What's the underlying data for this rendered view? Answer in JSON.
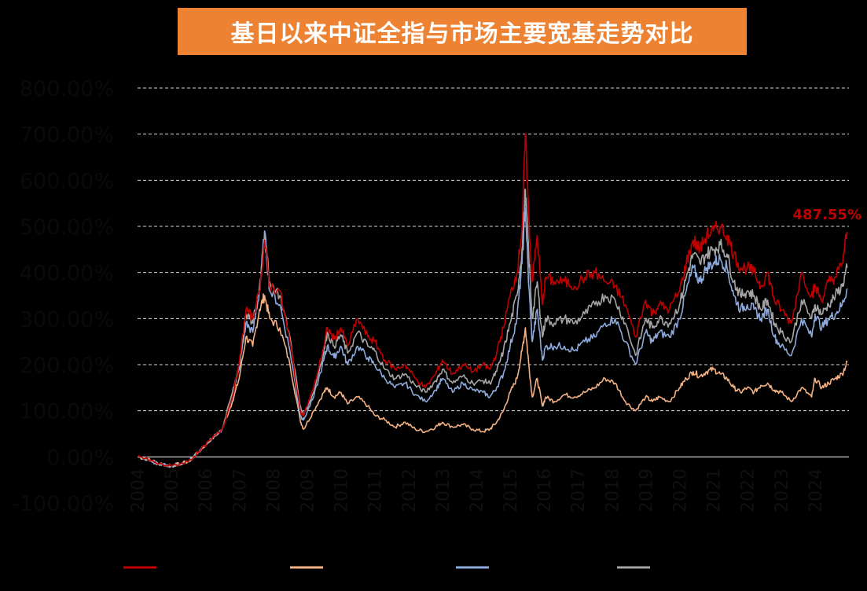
{
  "title": "基日以来中证全指与市场主要宽基走势对比",
  "colors": {
    "background": "#000000",
    "title_bg": "#ee8233",
    "title_text": "#ffffff",
    "grid": "#d9d9d9"
  },
  "chart_data": {
    "type": "line",
    "title": "基日以来中证全指与市场主要宽基走势对比",
    "ylim": [
      -100,
      800
    ],
    "xlim": [
      2004.0,
      2025.0
    ],
    "y_ticks": [
      "-100.00%",
      "0.00%",
      "100.00%",
      "200.00%",
      "300.00%",
      "400.00%",
      "500.00%",
      "600.00%",
      "700.00%",
      "800.00%"
    ],
    "y_tick_values": [
      -100,
      0,
      100,
      200,
      300,
      400,
      500,
      600,
      700,
      800
    ],
    "x_ticks": [
      "2004",
      "2005",
      "2006",
      "2007",
      "2008",
      "2009",
      "2010",
      "2011",
      "2012",
      "2013",
      "2014",
      "2015",
      "2016",
      "2017",
      "2018",
      "2019",
      "2020",
      "2021",
      "2022",
      "2023",
      "2024"
    ],
    "grid": "horizontal-dashed",
    "legend": "bottom",
    "end_annotation": "487.55%",
    "series": [
      {
        "color": "#c00000",
        "x": [
          2004.0,
          2004.3,
          2004.6,
          2005.0,
          2005.5,
          2005.8,
          2006.2,
          2006.5,
          2006.8,
          2007.0,
          2007.2,
          2007.4,
          2007.6,
          2007.75,
          2007.9,
          2008.2,
          2008.5,
          2008.8,
          2008.9,
          2009.2,
          2009.5,
          2009.6,
          2009.8,
          2010.0,
          2010.2,
          2010.5,
          2010.8,
          2011.0,
          2011.3,
          2011.6,
          2011.9,
          2012.2,
          2012.5,
          2012.8,
          2013.0,
          2013.3,
          2013.6,
          2013.9,
          2014.2,
          2014.4,
          2014.6,
          2014.8,
          2015.0,
          2015.2,
          2015.35,
          2015.45,
          2015.55,
          2015.65,
          2015.8,
          2015.95,
          2016.05,
          2016.3,
          2016.6,
          2016.9,
          2017.2,
          2017.5,
          2017.8,
          2018.1,
          2018.4,
          2018.7,
          2019.0,
          2019.2,
          2019.4,
          2019.7,
          2020.0,
          2020.2,
          2020.4,
          2020.6,
          2020.8,
          2021.0,
          2021.2,
          2021.4,
          2021.6,
          2021.8,
          2022.0,
          2022.2,
          2022.4,
          2022.6,
          2022.8,
          2023.0,
          2023.3,
          2023.6,
          2023.9,
          2024.0,
          2024.2,
          2024.4,
          2024.6,
          2024.8,
          2024.95
        ],
        "y": [
          0,
          -5,
          -15,
          -20,
          -10,
          10,
          40,
          60,
          130,
          200,
          320,
          300,
          360,
          470,
          370,
          360,
          250,
          100,
          90,
          150,
          240,
          280,
          255,
          280,
          240,
          300,
          260,
          250,
          210,
          190,
          200,
          170,
          150,
          180,
          210,
          180,
          200,
          185,
          200,
          190,
          225,
          280,
          350,
          400,
          495,
          700,
          520,
          380,
          480,
          330,
          390,
          380,
          380,
          370,
          390,
          400,
          380,
          370,
          330,
          260,
          340,
          310,
          330,
          320,
          360,
          420,
          470,
          450,
          480,
          490,
          500,
          480,
          440,
          410,
          410,
          400,
          370,
          400,
          340,
          320,
          290,
          400,
          350,
          370,
          340,
          380,
          390,
          420,
          488
        ]
      },
      {
        "color": "#f4b183",
        "x": [
          2004.0,
          2004.3,
          2004.6,
          2005.0,
          2005.5,
          2005.8,
          2006.2,
          2006.5,
          2006.8,
          2007.0,
          2007.2,
          2007.4,
          2007.6,
          2007.75,
          2007.9,
          2008.2,
          2008.5,
          2008.8,
          2008.9,
          2009.2,
          2009.5,
          2009.6,
          2009.8,
          2010.0,
          2010.2,
          2010.5,
          2010.8,
          2011.0,
          2011.3,
          2011.6,
          2011.9,
          2012.2,
          2012.5,
          2012.8,
          2013.0,
          2013.3,
          2013.6,
          2013.9,
          2014.2,
          2014.4,
          2014.6,
          2014.8,
          2015.0,
          2015.2,
          2015.35,
          2015.45,
          2015.55,
          2015.65,
          2015.8,
          2015.95,
          2016.05,
          2016.3,
          2016.6,
          2016.9,
          2017.2,
          2017.5,
          2017.8,
          2018.1,
          2018.4,
          2018.7,
          2019.0,
          2019.2,
          2019.4,
          2019.7,
          2020.0,
          2020.2,
          2020.4,
          2020.6,
          2020.8,
          2021.0,
          2021.2,
          2021.4,
          2021.6,
          2021.8,
          2022.0,
          2022.2,
          2022.4,
          2022.6,
          2022.8,
          2023.0,
          2023.3,
          2023.6,
          2023.9,
          2024.0,
          2024.2,
          2024.4,
          2024.6,
          2024.8,
          2024.95
        ],
        "y": [
          0,
          -5,
          -15,
          -20,
          -10,
          10,
          40,
          60,
          120,
          170,
          260,
          240,
          320,
          350,
          300,
          280,
          200,
          80,
          60,
          100,
          140,
          150,
          130,
          140,
          115,
          130,
          110,
          90,
          80,
          65,
          75,
          60,
          55,
          65,
          75,
          65,
          70,
          60,
          55,
          60,
          75,
          100,
          140,
          170,
          230,
          280,
          200,
          130,
          170,
          110,
          130,
          120,
          135,
          130,
          140,
          150,
          170,
          160,
          120,
          100,
          130,
          120,
          130,
          120,
          150,
          170,
          185,
          175,
          185,
          190,
          180,
          170,
          150,
          140,
          150,
          140,
          155,
          160,
          145,
          140,
          120,
          150,
          130,
          170,
          150,
          160,
          170,
          180,
          205
        ]
      },
      {
        "color": "#8eaadb",
        "x": [
          2004.0,
          2004.3,
          2004.6,
          2005.0,
          2005.5,
          2005.8,
          2006.2,
          2006.5,
          2006.8,
          2007.0,
          2007.2,
          2007.4,
          2007.6,
          2007.75,
          2007.9,
          2008.2,
          2008.5,
          2008.8,
          2008.9,
          2009.2,
          2009.5,
          2009.6,
          2009.8,
          2010.0,
          2010.2,
          2010.5,
          2010.8,
          2011.0,
          2011.3,
          2011.6,
          2011.9,
          2012.2,
          2012.5,
          2012.8,
          2013.0,
          2013.3,
          2013.6,
          2013.9,
          2014.2,
          2014.4,
          2014.6,
          2014.8,
          2015.0,
          2015.2,
          2015.35,
          2015.45,
          2015.55,
          2015.65,
          2015.8,
          2015.95,
          2016.05,
          2016.3,
          2016.6,
          2016.9,
          2017.2,
          2017.5,
          2017.8,
          2018.1,
          2018.4,
          2018.7,
          2019.0,
          2019.2,
          2019.4,
          2019.7,
          2020.0,
          2020.2,
          2020.4,
          2020.6,
          2020.8,
          2021.0,
          2021.2,
          2021.4,
          2021.6,
          2021.8,
          2022.0,
          2022.2,
          2022.4,
          2022.6,
          2022.8,
          2023.0,
          2023.3,
          2023.6,
          2023.9,
          2024.0,
          2024.2,
          2024.4,
          2024.6,
          2024.8,
          2024.95
        ],
        "y": [
          0,
          -5,
          -15,
          -20,
          -10,
          10,
          40,
          60,
          130,
          190,
          290,
          270,
          360,
          490,
          360,
          330,
          230,
          90,
          80,
          130,
          210,
          240,
          215,
          240,
          200,
          240,
          215,
          200,
          170,
          150,
          160,
          135,
          120,
          145,
          170,
          140,
          160,
          145,
          140,
          130,
          150,
          180,
          240,
          300,
          420,
          540,
          370,
          250,
          320,
          210,
          240,
          240,
          240,
          230,
          250,
          260,
          290,
          300,
          250,
          200,
          270,
          250,
          270,
          260,
          300,
          360,
          410,
          380,
          410,
          420,
          430,
          410,
          350,
          320,
          330,
          320,
          300,
          320,
          260,
          240,
          220,
          300,
          260,
          310,
          280,
          300,
          310,
          330,
          365
        ]
      },
      {
        "color": "#a5a5a5",
        "x": [
          2004.0,
          2004.3,
          2004.6,
          2005.0,
          2005.5,
          2005.8,
          2006.2,
          2006.5,
          2006.8,
          2007.0,
          2007.2,
          2007.4,
          2007.6,
          2007.75,
          2007.9,
          2008.2,
          2008.5,
          2008.8,
          2008.9,
          2009.2,
          2009.5,
          2009.6,
          2009.8,
          2010.0,
          2010.2,
          2010.5,
          2010.8,
          2011.0,
          2011.3,
          2011.6,
          2011.9,
          2012.2,
          2012.5,
          2012.8,
          2013.0,
          2013.3,
          2013.6,
          2013.9,
          2014.2,
          2014.4,
          2014.6,
          2014.8,
          2015.0,
          2015.2,
          2015.35,
          2015.45,
          2015.55,
          2015.65,
          2015.8,
          2015.95,
          2016.05,
          2016.3,
          2016.6,
          2016.9,
          2017.2,
          2017.5,
          2017.8,
          2018.1,
          2018.4,
          2018.7,
          2019.0,
          2019.2,
          2019.4,
          2019.7,
          2020.0,
          2020.2,
          2020.4,
          2020.6,
          2020.8,
          2021.0,
          2021.2,
          2021.4,
          2021.6,
          2021.8,
          2022.0,
          2022.2,
          2022.4,
          2022.6,
          2022.8,
          2023.0,
          2023.3,
          2023.6,
          2023.9,
          2024.0,
          2024.2,
          2024.4,
          2024.6,
          2024.8,
          2024.95
        ],
        "y": [
          0,
          -5,
          -15,
          -20,
          -10,
          10,
          40,
          60,
          140,
          200,
          310,
          290,
          370,
          480,
          380,
          350,
          260,
          110,
          90,
          140,
          230,
          270,
          240,
          265,
          225,
          270,
          240,
          230,
          190,
          170,
          180,
          155,
          140,
          165,
          190,
          160,
          175,
          160,
          165,
          160,
          185,
          230,
          290,
          350,
          450,
          580,
          440,
          300,
          380,
          260,
          300,
          290,
          300,
          290,
          310,
          330,
          350,
          340,
          290,
          220,
          300,
          280,
          300,
          290,
          330,
          390,
          440,
          420,
          440,
          450,
          460,
          440,
          380,
          350,
          360,
          350,
          320,
          340,
          290,
          270,
          250,
          340,
          300,
          330,
          310,
          330,
          350,
          370,
          410
        ]
      }
    ]
  }
}
